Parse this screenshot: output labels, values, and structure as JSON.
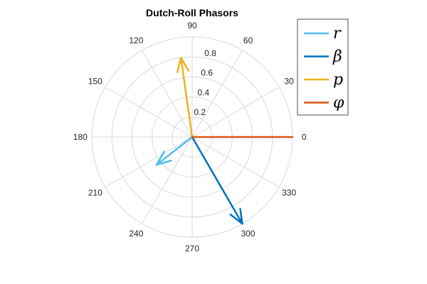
{
  "chart_data": {
    "type": "polar-compass",
    "title": "Dutch-Roll Phasors",
    "rlim": [
      0,
      1
    ],
    "r_ticks": [
      0.2,
      0.4,
      0.6,
      0.8
    ],
    "r_tick_labels": [
      "0.2",
      "0.4",
      "0.6",
      "0.8"
    ],
    "theta_ticks": [
      0,
      30,
      60,
      90,
      120,
      150,
      180,
      210,
      240,
      270,
      300,
      330
    ],
    "theta_tick_labels": [
      "0",
      "30",
      "60",
      "90",
      "120",
      "150",
      "180",
      "210",
      "240",
      "270",
      "300",
      "330"
    ],
    "theta_unit": "degrees",
    "grid": true,
    "legend_position": "top-right",
    "series": [
      {
        "name": "r",
        "magnitude": 0.45,
        "angle_deg": 218,
        "color": "#4DBEEE"
      },
      {
        "name": "β",
        "magnitude": 1.0,
        "angle_deg": 300,
        "color": "#0072BD"
      },
      {
        "name": "p",
        "magnitude": 0.8,
        "angle_deg": 98,
        "color": "#EDB120"
      },
      {
        "name": "φ",
        "magnitude": 1.0,
        "angle_deg": 0,
        "color": "#D95319"
      }
    ]
  }
}
